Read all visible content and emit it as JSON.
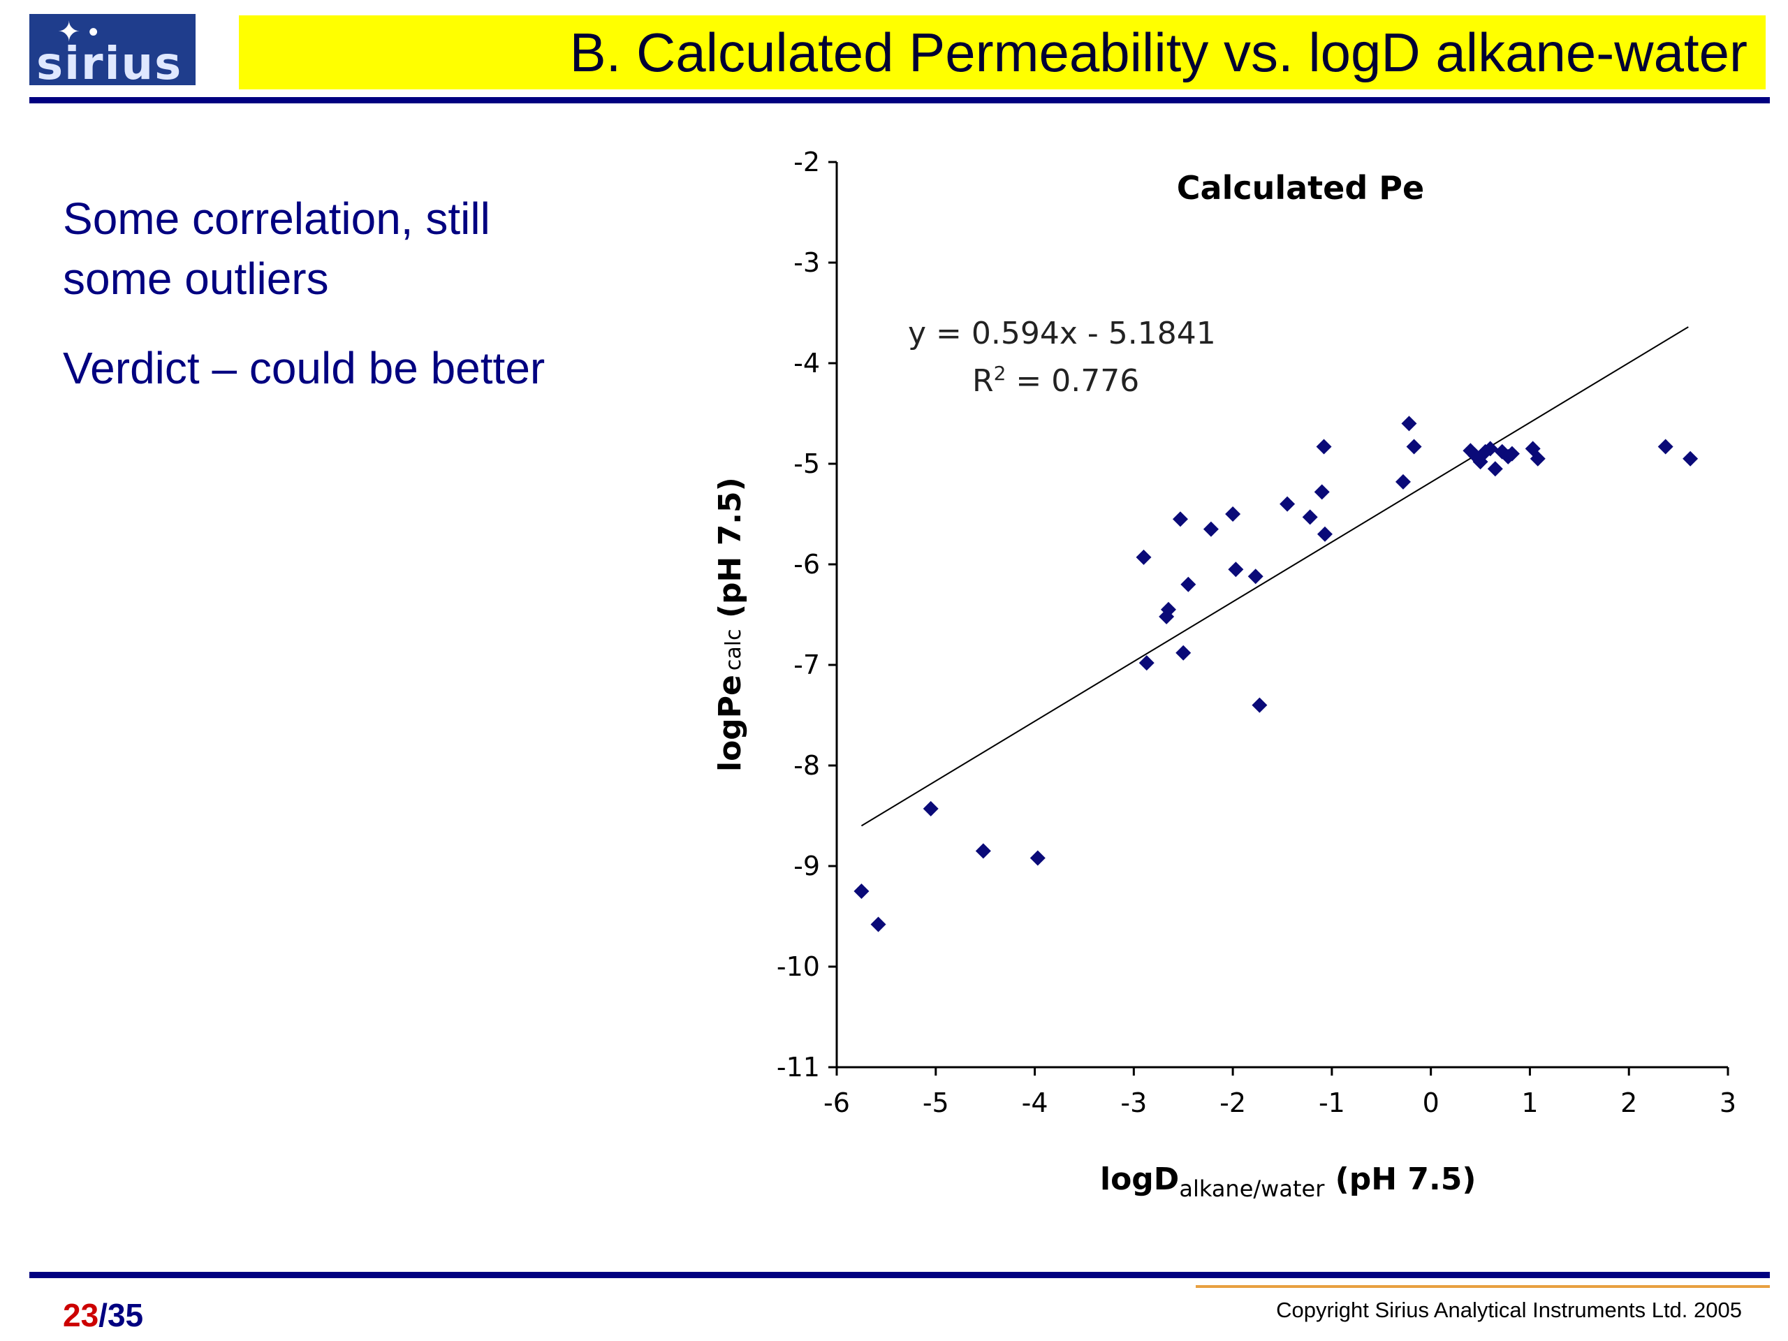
{
  "logo": {
    "text": "sirius",
    "stars": "✦ •"
  },
  "header": {
    "title": "B. Calculated Permeability vs. logD alkane-water"
  },
  "bullets": [
    {
      "line1": "Some correlation, still",
      "line2": "some outliers"
    },
    {
      "line1": "Verdict – could be better"
    }
  ],
  "footer": {
    "page_current": "23",
    "page_sep": "/",
    "page_total": "35",
    "copyright": "Copyright Sirius Analytical Instruments Ltd. 2005"
  },
  "colors": {
    "title_bar": "#ffff00",
    "rule": "#000080",
    "marker": "#0a0a78",
    "text": "#000080"
  },
  "chart_data": {
    "type": "scatter",
    "title": "Calculated Pe",
    "xlabel_main": "logD",
    "xlabel_sub": "alkane/water",
    "xlabel_tail": " (pH 7.5)",
    "ylabel_main": "logPe",
    "ylabel_sub": "calc",
    "ylabel_tail": " (pH 7.5)",
    "xlim": [
      -6,
      3
    ],
    "ylim": [
      -11,
      -2
    ],
    "x_ticks": [
      -6,
      -5,
      -4,
      -3,
      -2,
      -1,
      0,
      1,
      2,
      3
    ],
    "y_ticks": [
      -2,
      -3,
      -4,
      -5,
      -6,
      -7,
      -8,
      -9,
      -10,
      -11
    ],
    "trendline": {
      "slope": 0.594,
      "intercept": -5.1841,
      "x_range": [
        -5.75,
        2.6
      ],
      "equation": "y = 0.594x - 5.1841",
      "r2_label": "R",
      "r2_sup": "2",
      "r2_value": " = 0.776"
    },
    "points": [
      {
        "x": -5.75,
        "y": -9.25
      },
      {
        "x": -5.58,
        "y": -9.58
      },
      {
        "x": -5.05,
        "y": -8.43
      },
      {
        "x": -4.52,
        "y": -8.85
      },
      {
        "x": -3.97,
        "y": -8.92
      },
      {
        "x": -2.9,
        "y": -5.93
      },
      {
        "x": -2.87,
        "y": -6.98
      },
      {
        "x": -2.65,
        "y": -6.45
      },
      {
        "x": -2.67,
        "y": -6.52
      },
      {
        "x": -2.53,
        "y": -5.55
      },
      {
        "x": -2.5,
        "y": -6.88
      },
      {
        "x": -2.45,
        "y": -6.2
      },
      {
        "x": -2.22,
        "y": -5.65
      },
      {
        "x": -2.0,
        "y": -5.5
      },
      {
        "x": -1.97,
        "y": -6.05
      },
      {
        "x": -1.77,
        "y": -6.12
      },
      {
        "x": -1.73,
        "y": -7.4
      },
      {
        "x": -1.45,
        "y": -5.4
      },
      {
        "x": -1.22,
        "y": -5.53
      },
      {
        "x": -1.1,
        "y": -5.28
      },
      {
        "x": -1.08,
        "y": -4.83
      },
      {
        "x": -1.07,
        "y": -5.7
      },
      {
        "x": -0.28,
        "y": -5.18
      },
      {
        "x": -0.22,
        "y": -4.6
      },
      {
        "x": -0.17,
        "y": -4.83
      },
      {
        "x": 0.4,
        "y": -4.87
      },
      {
        "x": 0.45,
        "y": -4.92
      },
      {
        "x": 0.5,
        "y": -4.98
      },
      {
        "x": 0.55,
        "y": -4.88
      },
      {
        "x": 0.6,
        "y": -4.85
      },
      {
        "x": 0.65,
        "y": -5.05
      },
      {
        "x": 0.72,
        "y": -4.88
      },
      {
        "x": 0.78,
        "y": -4.93
      },
      {
        "x": 0.82,
        "y": -4.9
      },
      {
        "x": 1.03,
        "y": -4.85
      },
      {
        "x": 1.08,
        "y": -4.95
      },
      {
        "x": 2.37,
        "y": -4.83
      },
      {
        "x": 2.62,
        "y": -4.95
      }
    ]
  }
}
